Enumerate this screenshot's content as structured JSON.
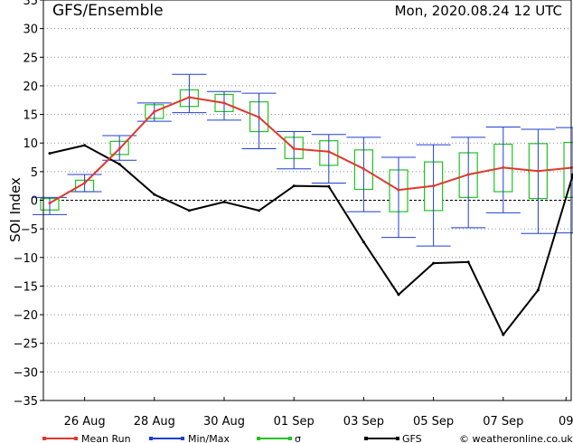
{
  "header": {
    "title": "GFS/Ensemble",
    "datetime": "Mon, 2020.08.24   12 UTC"
  },
  "legend": {
    "mean_run": "Mean Run",
    "min_max": "Min/Max",
    "sigma": "σ",
    "gfs": "GFS",
    "credit": "© weatheronline.co.uk"
  },
  "colors": {
    "mean_run": "#e0382e",
    "min_max": "#1e3fd0",
    "sigma": "#22c322",
    "gfs": "#000000"
  },
  "chart_data": {
    "type": "line",
    "title": "GFS/Ensemble",
    "ylabel": "SOI Index",
    "xlabel": "",
    "ylim": [
      -35,
      35
    ],
    "xlim": [
      0,
      15
    ],
    "yticks": [
      -35,
      -30,
      -25,
      -20,
      -15,
      -10,
      -5,
      0,
      5,
      10,
      15,
      20,
      25,
      30,
      35
    ],
    "xtick_labels": [
      {
        "x": 1,
        "label": "26 Aug"
      },
      {
        "x": 3,
        "label": "28 Aug"
      },
      {
        "x": 5,
        "label": "30 Aug"
      },
      {
        "x": 7,
        "label": "01 Sep"
      },
      {
        "x": 9,
        "label": "03 Sep"
      },
      {
        "x": 11,
        "label": "05 Sep"
      },
      {
        "x": 13,
        "label": "07 Sep"
      },
      {
        "x": 14.8,
        "label": "09"
      }
    ],
    "x": [
      0,
      1,
      2,
      3,
      4,
      5,
      6,
      7,
      8,
      9,
      10,
      11,
      12,
      13,
      14,
      15
    ],
    "series": [
      {
        "name": "Mean Run",
        "values": [
          -0.5,
          3,
          9,
          15.5,
          18,
          17,
          14.5,
          9,
          8.5,
          5.5,
          1.8,
          2.5,
          4.5,
          5.7,
          5.1,
          5.7
        ]
      },
      {
        "name": "GFS",
        "values": [
          8.2,
          9.6,
          6.3,
          1.0,
          -1.8,
          -0.3,
          -1.8,
          2.5,
          2.4,
          -7.3,
          -16.5,
          -11.0,
          -10.8,
          -23.5,
          -15.7,
          4.5
        ]
      }
    ],
    "min_max": [
      [
        -2.5,
        0.5
      ],
      [
        1.5,
        4.5
      ],
      [
        7,
        11.3
      ],
      [
        13.8,
        17
      ],
      [
        15.3,
        22
      ],
      [
        14,
        19
      ],
      [
        9,
        18.7
      ],
      [
        5.5,
        12
      ],
      [
        3,
        11.5
      ],
      [
        -2,
        11
      ],
      [
        -6.5,
        7.5
      ],
      [
        -8,
        9.7
      ],
      [
        -4.8,
        11
      ],
      [
        -2.2,
        12.8
      ],
      [
        -5.8,
        12.4
      ],
      [
        -5.7,
        12.7
      ]
    ],
    "sigma": [
      [
        -1.7,
        0.3
      ],
      [
        1.5,
        3.5
      ],
      [
        8,
        10.3
      ],
      [
        14.3,
        16.7
      ],
      [
        16.4,
        19.3
      ],
      [
        15.5,
        18.5
      ],
      [
        12,
        17.2
      ],
      [
        7.3,
        11
      ],
      [
        6.1,
        10.4
      ],
      [
        1.9,
        8.8
      ],
      [
        -2,
        5.3
      ],
      [
        -1.8,
        6.7
      ],
      [
        0.5,
        8.3
      ],
      [
        1.5,
        9.8
      ],
      [
        0.3,
        9.9
      ],
      [
        0.5,
        10.1
      ]
    ],
    "zero_line": true,
    "grid": true,
    "legend_position": "bottom"
  }
}
